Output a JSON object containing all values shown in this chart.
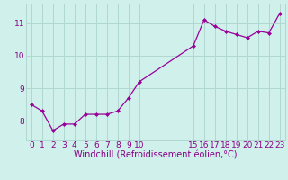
{
  "x_values": [
    0,
    1,
    2,
    3,
    4,
    5,
    6,
    7,
    8,
    9,
    10,
    15,
    16,
    17,
    18,
    19,
    20,
    21,
    22,
    23
  ],
  "y_values": [
    8.5,
    8.3,
    7.7,
    7.9,
    7.9,
    8.2,
    8.2,
    8.2,
    8.3,
    8.7,
    9.2,
    10.3,
    11.1,
    10.9,
    10.75,
    10.65,
    10.55,
    10.75,
    10.7,
    11.3
  ],
  "line_color": "#990099",
  "marker": "D",
  "marker_size": 2,
  "bg_color": "#d0f0eb",
  "grid_color": "#b0d8d0",
  "axis_color": "#880088",
  "xlabel": "Windchill (Refroidissement éolien,°C)",
  "xlim": [
    -0.5,
    23.5
  ],
  "ylim": [
    7.4,
    11.6
  ],
  "yticks": [
    8,
    9,
    10,
    11
  ],
  "xticks": [
    0,
    1,
    2,
    3,
    4,
    5,
    6,
    7,
    8,
    9,
    10,
    15,
    16,
    17,
    18,
    19,
    20,
    21,
    22,
    23
  ],
  "tick_font_size": 6.5,
  "xlabel_font_size": 7.0
}
